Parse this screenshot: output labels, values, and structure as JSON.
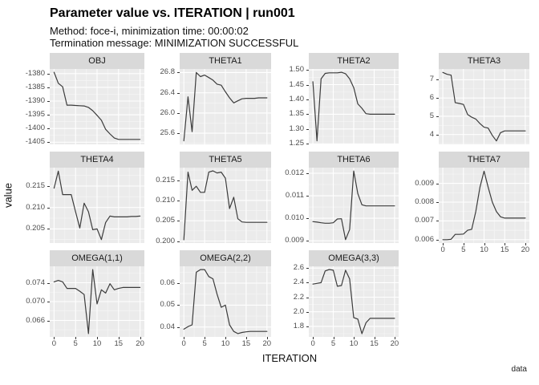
{
  "header": {
    "title": "Parameter value vs. ITERATION | run001",
    "subtitle_line1": "Method: foce-i, minimization time: 00:00:02",
    "subtitle_line2": "Termination message: MINIMIZATION SUCCESSFUL"
  },
  "axes": {
    "x_label": "ITERATION",
    "y_label": "value"
  },
  "caption": "data",
  "colors": {
    "strip_bg": "#D9D9D9",
    "panel_bg": "#EBEBEB",
    "grid_major": "#FFFFFF",
    "grid_minor": "#F5F5F5",
    "line": "#3C3C3C",
    "axis_text": "#4D4D4D",
    "tick_mark": "#333333"
  },
  "chart_data": {
    "type": "line",
    "title": "Parameter value vs. ITERATION | run001",
    "xlabel": "ITERATION",
    "ylabel": "value",
    "caption": "data",
    "grid": true,
    "legend": "none",
    "x": [
      0,
      1,
      2,
      3,
      4,
      5,
      6,
      7,
      8,
      9,
      10,
      11,
      12,
      13,
      14,
      15,
      16,
      17,
      18,
      19,
      20
    ],
    "xticks": [
      0,
      5,
      10,
      15,
      20
    ],
    "xtick_labels": [
      "0",
      "5",
      "10",
      "15",
      "20"
    ],
    "xlim": [
      -1,
      21
    ],
    "panels": [
      {
        "name": "OBJ",
        "row": 0,
        "col": 0,
        "show_x_axis": false,
        "ylim": [
          -1405.8,
          -1378.3
        ],
        "ytick_values": [
          -1380,
          -1385,
          -1390,
          -1395,
          -1400,
          -1405
        ],
        "ytick_labels": [
          "-1380",
          "-1385",
          "-1390",
          "-1395",
          "-1400",
          "-1405"
        ],
        "values": [
          -1379.5,
          -1383.5,
          -1384.8,
          -1391.5,
          -1391.5,
          -1391.6,
          -1391.7,
          -1391.8,
          -1392.3,
          -1393.5,
          -1395.2,
          -1397.0,
          -1400.3,
          -1402.0,
          -1403.5,
          -1404.0,
          -1404.0,
          -1404.0,
          -1404.0,
          -1404.0,
          -1404.0
        ]
      },
      {
        "name": "THETA1",
        "row": 0,
        "col": 1,
        "show_x_axis": false,
        "ylim": [
          25.38,
          26.87
        ],
        "ytick_values": [
          25.6,
          26.0,
          26.4,
          26.8
        ],
        "ytick_labels": [
          "25.6",
          "26.0",
          "26.4",
          "26.8"
        ],
        "values": [
          25.45,
          26.32,
          25.63,
          26.8,
          26.72,
          26.75,
          26.7,
          26.65,
          26.57,
          26.55,
          26.42,
          26.3,
          26.2,
          26.24,
          26.28,
          26.29,
          26.29,
          26.29,
          26.3,
          26.3,
          26.3
        ]
      },
      {
        "name": "THETA2",
        "row": 0,
        "col": 2,
        "show_x_axis": false,
        "ylim": [
          1.248,
          1.503
        ],
        "ytick_values": [
          1.25,
          1.3,
          1.35,
          1.4,
          1.45,
          1.5
        ],
        "ytick_labels": [
          "1.25",
          "1.30",
          "1.35",
          "1.40",
          "1.45",
          "1.50"
        ],
        "values": [
          1.46,
          1.26,
          1.47,
          1.488,
          1.49,
          1.49,
          1.49,
          1.492,
          1.487,
          1.47,
          1.44,
          1.385,
          1.37,
          1.352,
          1.35,
          1.35,
          1.35,
          1.35,
          1.35,
          1.35,
          1.35
        ]
      },
      {
        "name": "THETA3",
        "row": 0,
        "col": 3,
        "show_x_axis": false,
        "ylim": [
          3.46,
          7.59
        ],
        "ytick_values": [
          4,
          5,
          6,
          7
        ],
        "ytick_labels": [
          "4",
          "5",
          "6",
          "7"
        ],
        "values": [
          7.4,
          7.3,
          7.25,
          5.75,
          5.7,
          5.65,
          5.1,
          4.95,
          4.85,
          4.6,
          4.4,
          4.35,
          3.95,
          3.65,
          4.1,
          4.2,
          4.2,
          4.2,
          4.2,
          4.2,
          4.2
        ]
      },
      {
        "name": "THETA4",
        "row": 1,
        "col": 0,
        "show_x_axis": false,
        "ylim": [
          0.2017,
          0.2193
        ],
        "ytick_values": [
          0.205,
          0.21,
          0.215
        ],
        "ytick_labels": [
          "0.205",
          "0.210",
          "0.215"
        ],
        "values": [
          0.2145,
          0.2185,
          0.213,
          0.213,
          0.213,
          0.209,
          0.2052,
          0.211,
          0.209,
          0.2048,
          0.205,
          0.2025,
          0.2065,
          0.208,
          0.2078,
          0.2078,
          0.2078,
          0.2078,
          0.2079,
          0.2079,
          0.208
        ]
      },
      {
        "name": "THETA5",
        "row": 1,
        "col": 1,
        "show_x_axis": false,
        "ylim": [
          0.1995,
          0.2181
        ],
        "ytick_values": [
          0.2,
          0.205,
          0.21,
          0.215
        ],
        "ytick_labels": [
          "0.200",
          "0.205",
          "0.210",
          "0.215"
        ],
        "values": [
          0.2003,
          0.217,
          0.2125,
          0.2135,
          0.212,
          0.212,
          0.217,
          0.2173,
          0.2168,
          0.217,
          0.2155,
          0.208,
          0.2108,
          0.2055,
          0.2047,
          0.2046,
          0.2046,
          0.2046,
          0.2046,
          0.2046,
          0.2046
        ]
      },
      {
        "name": "THETA6",
        "row": 1,
        "col": 2,
        "show_x_axis": false,
        "ylim": [
          0.0089,
          0.01225
        ],
        "ytick_values": [
          0.009,
          0.01,
          0.011,
          0.012
        ],
        "ytick_labels": [
          "0.009",
          "0.010",
          "0.011",
          "0.012"
        ],
        "values": [
          0.00985,
          0.00983,
          0.0098,
          0.00978,
          0.00978,
          0.0098,
          0.00997,
          0.00998,
          0.00905,
          0.0095,
          0.0121,
          0.0111,
          0.0106,
          0.01055,
          0.01055,
          0.01055,
          0.01055,
          0.01055,
          0.01055,
          0.01055,
          0.01055
        ]
      },
      {
        "name": "THETA7",
        "row": 1,
        "col": 3,
        "show_x_axis": true,
        "ylim": [
          0.00582,
          0.00984
        ],
        "ytick_values": [
          0.006,
          0.007,
          0.008,
          0.009
        ],
        "ytick_labels": [
          "0.006",
          "0.007",
          "0.008",
          "0.009"
        ],
        "values": [
          0.006,
          0.006,
          0.00602,
          0.00628,
          0.00628,
          0.0063,
          0.0065,
          0.00655,
          0.0075,
          0.0088,
          0.00965,
          0.0088,
          0.008,
          0.0075,
          0.00722,
          0.00715,
          0.00715,
          0.00715,
          0.00715,
          0.00715,
          0.00715
        ]
      },
      {
        "name": "OMEGA(1,1)",
        "row": 2,
        "col": 0,
        "show_x_axis": true,
        "ylim": [
          0.0625,
          0.0775
        ],
        "ytick_values": [
          0.066,
          0.07,
          0.074
        ],
        "ytick_labels": [
          "0.066",
          "0.070",
          "0.074"
        ],
        "values": [
          0.0742,
          0.0745,
          0.0742,
          0.0728,
          0.0728,
          0.0728,
          0.0722,
          0.0715,
          0.0632,
          0.0768,
          0.0695,
          0.0725,
          0.0718,
          0.0738,
          0.0725,
          0.0728,
          0.073,
          0.073,
          0.073,
          0.073,
          0.073
        ]
      },
      {
        "name": "OMEGA(2,2)",
        "row": 2,
        "col": 1,
        "show_x_axis": true,
        "ylim": [
          0.0355,
          0.0677
        ],
        "ytick_values": [
          0.04,
          0.05,
          0.06
        ],
        "ytick_labels": [
          "0.04",
          "0.05",
          "0.06"
        ],
        "values": [
          0.039,
          0.0402,
          0.041,
          0.065,
          0.0662,
          0.0662,
          0.063,
          0.062,
          0.055,
          0.049,
          0.05,
          0.041,
          0.038,
          0.037,
          0.0375,
          0.0378,
          0.038,
          0.038,
          0.038,
          0.038,
          0.038
        ]
      },
      {
        "name": "OMEGA(3,3)",
        "row": 2,
        "col": 2,
        "show_x_axis": true,
        "ylim": [
          1.656,
          2.624
        ],
        "ytick_values": [
          1.8,
          2.0,
          2.2,
          2.4,
          2.6
        ],
        "ytick_labels": [
          "1.8",
          "2.0",
          "2.2",
          "2.4",
          "2.6"
        ],
        "values": [
          2.38,
          2.39,
          2.4,
          2.56,
          2.58,
          2.57,
          2.35,
          2.36,
          2.57,
          2.45,
          1.92,
          1.9,
          1.7,
          1.85,
          1.91,
          1.91,
          1.91,
          1.91,
          1.91,
          1.91,
          1.91
        ]
      }
    ]
  }
}
